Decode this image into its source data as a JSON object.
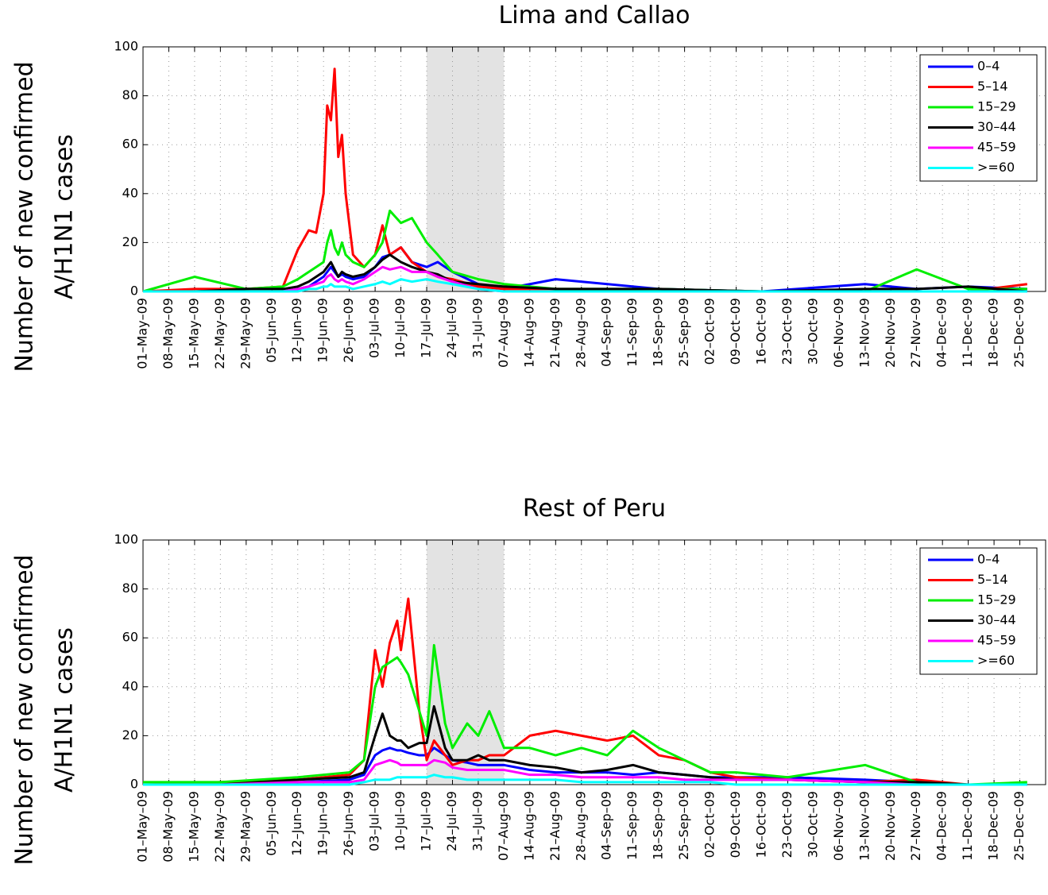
{
  "chart_data": [
    {
      "type": "line",
      "title": "Lima and Callao",
      "ylabel": [
        "Number of new confirmed",
        "A/H1N1 cases"
      ],
      "xlim": [
        0,
        245
      ],
      "ylim": [
        0,
        100
      ],
      "yticks": [
        0,
        20,
        40,
        60,
        80,
        100
      ],
      "grid": true,
      "legend": "upper right",
      "shade": [
        77,
        98
      ],
      "xticks": [
        {
          "value": 0,
          "label": "01–May–09"
        },
        {
          "value": 7,
          "label": "08–May–09"
        },
        {
          "value": 14,
          "label": "15–May–09"
        },
        {
          "value": 21,
          "label": "22–May–09"
        },
        {
          "value": 28,
          "label": "29–May–09"
        },
        {
          "value": 35,
          "label": "05–Jun–09"
        },
        {
          "value": 42,
          "label": "12–Jun–09"
        },
        {
          "value": 49,
          "label": "19–Jun–09"
        },
        {
          "value": 56,
          "label": "26–Jun–09"
        },
        {
          "value": 63,
          "label": "03–Jul–09"
        },
        {
          "value": 70,
          "label": "10–Jul–09"
        },
        {
          "value": 77,
          "label": "17–Jul–09"
        },
        {
          "value": 84,
          "label": "24–Jul–09"
        },
        {
          "value": 91,
          "label": "31–Jul–09"
        },
        {
          "value": 98,
          "label": "07–Aug–09"
        },
        {
          "value": 105,
          "label": "14–Aug–09"
        },
        {
          "value": 112,
          "label": "21–Aug–09"
        },
        {
          "value": 119,
          "label": "28–Aug–09"
        },
        {
          "value": 126,
          "label": "04–Sep–09"
        },
        {
          "value": 133,
          "label": "11–Sep–09"
        },
        {
          "value": 140,
          "label": "18–Sep–09"
        },
        {
          "value": 147,
          "label": "25–Sep–09"
        },
        {
          "value": 154,
          "label": "02–Oct–09"
        },
        {
          "value": 161,
          "label": "09–Oct–09"
        },
        {
          "value": 168,
          "label": "16–Oct–09"
        },
        {
          "value": 175,
          "label": "23–Oct–09"
        },
        {
          "value": 182,
          "label": "30–Oct–09"
        },
        {
          "value": 189,
          "label": "06–Nov–09"
        },
        {
          "value": 196,
          "label": "13–Nov–09"
        },
        {
          "value": 203,
          "label": "20–Nov–09"
        },
        {
          "value": 210,
          "label": "27–Nov–09"
        },
        {
          "value": 217,
          "label": "04–Dec–09"
        },
        {
          "value": 224,
          "label": "11–Dec–09"
        },
        {
          "value": 231,
          "label": "18–Dec–09"
        },
        {
          "value": 238,
          "label": "25–Dec–09"
        }
      ],
      "x": [
        0,
        14,
        28,
        38,
        42,
        45,
        47,
        49,
        50,
        51,
        52,
        53,
        54,
        55,
        57,
        60,
        63,
        65,
        67,
        70,
        73,
        77,
        80,
        84,
        91,
        98,
        112,
        140,
        168,
        196,
        210,
        224,
        240
      ],
      "series": [
        {
          "name": "0–4",
          "color": "#0000ff",
          "values": [
            0,
            0,
            0,
            0,
            1,
            2,
            4,
            6,
            8,
            10,
            8,
            6,
            7,
            6,
            5,
            6,
            10,
            14,
            15,
            18,
            12,
            10,
            12,
            8,
            3,
            1,
            5,
            1,
            0,
            3,
            1,
            2,
            1
          ]
        },
        {
          "name": "5–14",
          "color": "#ff0000",
          "values": [
            0,
            1,
            1,
            2,
            17,
            25,
            24,
            40,
            76,
            70,
            91,
            55,
            64,
            40,
            15,
            10,
            15,
            27,
            15,
            18,
            12,
            8,
            6,
            5,
            2,
            1,
            1,
            0,
            0,
            0,
            0,
            0,
            3
          ]
        },
        {
          "name": "15–29",
          "color": "#00ee00",
          "values": [
            0,
            6,
            1,
            2,
            5,
            8,
            10,
            12,
            20,
            25,
            18,
            15,
            20,
            15,
            12,
            10,
            15,
            20,
            33,
            28,
            30,
            20,
            15,
            8,
            5,
            3,
            1,
            1,
            0,
            0,
            9,
            1,
            1
          ]
        },
        {
          "name": "30–44",
          "color": "#000000",
          "values": [
            0,
            0,
            1,
            1,
            2,
            4,
            6,
            8,
            10,
            12,
            9,
            6,
            8,
            7,
            6,
            7,
            10,
            13,
            15,
            12,
            10,
            8,
            7,
            4,
            3,
            2,
            1,
            1,
            0,
            1,
            1,
            2,
            0
          ]
        },
        {
          "name": "45–59",
          "color": "#ff00ff",
          "values": [
            0,
            0,
            0,
            0,
            1,
            2,
            3,
            4,
            6,
            7,
            5,
            4,
            5,
            4,
            3,
            5,
            8,
            10,
            9,
            10,
            8,
            8,
            6,
            4,
            1,
            0,
            0,
            0,
            0,
            0,
            0,
            0,
            0
          ]
        },
        {
          "name": ">=60",
          "color": "#00ffff",
          "values": [
            0,
            0,
            0,
            0,
            0,
            1,
            1,
            2,
            2,
            3,
            2,
            2,
            2,
            2,
            1,
            2,
            3,
            4,
            3,
            5,
            4,
            5,
            4,
            3,
            1,
            0,
            0,
            0,
            0,
            0,
            0,
            0,
            0
          ]
        }
      ]
    },
    {
      "type": "line",
      "title": "Rest of Peru",
      "ylabel": [
        "Number of new confirmed",
        "A/H1N1 cases"
      ],
      "xlim": [
        0,
        245
      ],
      "ylim": [
        0,
        100
      ],
      "yticks": [
        0,
        20,
        40,
        60,
        80,
        100
      ],
      "grid": true,
      "legend": "upper right",
      "shade": [
        77,
        98
      ],
      "xticks": [
        {
          "value": 0,
          "label": "01–May–09"
        },
        {
          "value": 7,
          "label": "08–May–09"
        },
        {
          "value": 14,
          "label": "15–May–09"
        },
        {
          "value": 21,
          "label": "22–May–09"
        },
        {
          "value": 28,
          "label": "29–May–09"
        },
        {
          "value": 35,
          "label": "05–Jun–09"
        },
        {
          "value": 42,
          "label": "12–Jun–09"
        },
        {
          "value": 49,
          "label": "19–Jun–09"
        },
        {
          "value": 56,
          "label": "26–Jun–09"
        },
        {
          "value": 63,
          "label": "03–Jul–09"
        },
        {
          "value": 70,
          "label": "10–Jul–09"
        },
        {
          "value": 77,
          "label": "17–Jul–09"
        },
        {
          "value": 84,
          "label": "24–Jul–09"
        },
        {
          "value": 91,
          "label": "31–Jul–09"
        },
        {
          "value": 98,
          "label": "07–Aug–09"
        },
        {
          "value": 105,
          "label": "14–Aug–09"
        },
        {
          "value": 112,
          "label": "21–Aug–09"
        },
        {
          "value": 119,
          "label": "28–Aug–09"
        },
        {
          "value": 126,
          "label": "04–Sep–09"
        },
        {
          "value": 133,
          "label": "11–Sep–09"
        },
        {
          "value": 140,
          "label": "18–Sep–09"
        },
        {
          "value": 147,
          "label": "25–Sep–09"
        },
        {
          "value": 154,
          "label": "02–Oct–09"
        },
        {
          "value": 161,
          "label": "09–Oct–09"
        },
        {
          "value": 168,
          "label": "16–Oct–09"
        },
        {
          "value": 175,
          "label": "23–Oct–09"
        },
        {
          "value": 182,
          "label": "30–Oct–09"
        },
        {
          "value": 189,
          "label": "06–Nov–09"
        },
        {
          "value": 196,
          "label": "13–Nov–09"
        },
        {
          "value": 203,
          "label": "20–Nov–09"
        },
        {
          "value": 210,
          "label": "27–Nov–09"
        },
        {
          "value": 217,
          "label": "04–Dec–09"
        },
        {
          "value": 224,
          "label": "11–Dec–09"
        },
        {
          "value": 231,
          "label": "18–Dec–09"
        },
        {
          "value": 238,
          "label": "25–Dec–09"
        }
      ],
      "x": [
        0,
        21,
        42,
        56,
        60,
        63,
        65,
        67,
        69,
        70,
        72,
        75,
        77,
        79,
        82,
        84,
        88,
        91,
        94,
        98,
        105,
        112,
        119,
        126,
        133,
        140,
        147,
        154,
        161,
        175,
        196,
        210,
        224,
        240
      ],
      "series": [
        {
          "name": "0–4",
          "color": "#0000ff",
          "values": [
            0,
            0,
            1,
            2,
            4,
            12,
            14,
            15,
            14,
            14,
            13,
            12,
            12,
            15,
            12,
            10,
            9,
            8,
            8,
            8,
            6,
            5,
            5,
            5,
            4,
            5,
            4,
            3,
            3,
            3,
            2,
            1,
            0,
            0
          ]
        },
        {
          "name": "5–14",
          "color": "#ff0000",
          "values": [
            0,
            1,
            2,
            4,
            10,
            55,
            40,
            58,
            67,
            55,
            76,
            30,
            10,
            18,
            12,
            8,
            10,
            10,
            12,
            12,
            20,
            22,
            20,
            18,
            20,
            12,
            10,
            5,
            3,
            2,
            1,
            2,
            0,
            0
          ]
        },
        {
          "name": "15–29",
          "color": "#00ee00",
          "values": [
            1,
            1,
            3,
            5,
            10,
            40,
            48,
            50,
            52,
            50,
            45,
            30,
            20,
            57,
            25,
            15,
            25,
            20,
            30,
            15,
            15,
            12,
            15,
            12,
            22,
            15,
            10,
            5,
            5,
            3,
            8,
            1,
            0,
            1
          ]
        },
        {
          "name": "30–44",
          "color": "#000000",
          "values": [
            0,
            0,
            2,
            3,
            5,
            20,
            29,
            20,
            18,
            18,
            15,
            17,
            17,
            32,
            15,
            10,
            10,
            12,
            10,
            10,
            8,
            7,
            5,
            6,
            8,
            5,
            4,
            3,
            2,
            2,
            1,
            1,
            0,
            0
          ]
        },
        {
          "name": "45–59",
          "color": "#ff00ff",
          "values": [
            0,
            0,
            1,
            1,
            2,
            8,
            9,
            10,
            9,
            8,
            8,
            8,
            8,
            10,
            9,
            7,
            6,
            6,
            6,
            6,
            4,
            4,
            3,
            3,
            3,
            3,
            2,
            2,
            2,
            2,
            1,
            0,
            0,
            0
          ]
        },
        {
          "name": ">=60",
          "color": "#00ffff",
          "values": [
            0,
            0,
            0,
            0,
            1,
            2,
            2,
            2,
            3,
            3,
            3,
            3,
            3,
            4,
            3,
            3,
            2,
            2,
            2,
            2,
            2,
            2,
            1,
            1,
            1,
            1,
            1,
            1,
            0,
            0,
            0,
            0,
            0,
            0
          ]
        }
      ]
    }
  ]
}
